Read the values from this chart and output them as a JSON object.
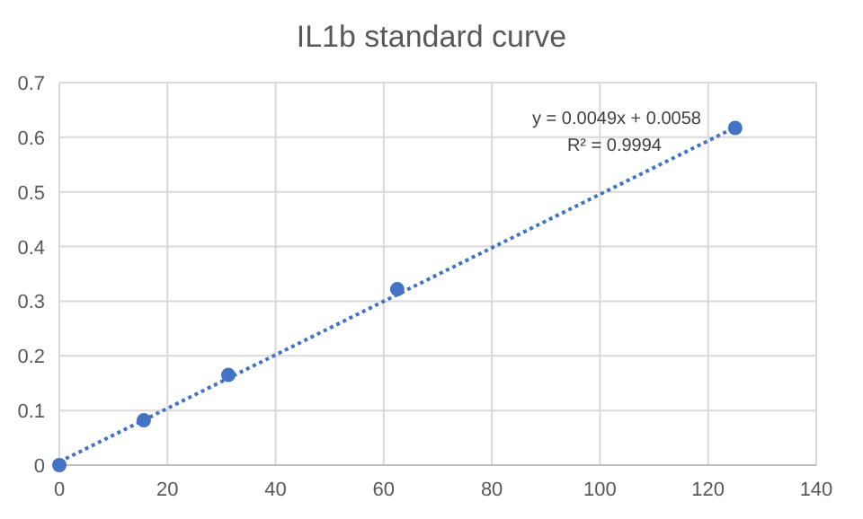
{
  "chart_data": {
    "type": "scatter",
    "title": "IL1b standard curve",
    "marker": "circle",
    "xlim": [
      0,
      140
    ],
    "xticks": [
      0,
      20,
      40,
      60,
      80,
      100,
      120,
      140
    ],
    "ylim": [
      0,
      0.7
    ],
    "yticks": [
      0,
      0.1,
      0.2,
      0.3,
      0.4,
      0.5,
      0.6,
      0.7
    ],
    "grid": true,
    "series": [
      {
        "color": "#4472c4",
        "x": [
          0,
          15.625,
          31.25,
          62.5,
          125
        ],
        "values": [
          0,
          0.082,
          0.165,
          0.322,
          0.617
        ]
      },
      {
        "type": "line",
        "color": "#4472c4",
        "x": [
          0,
          125
        ],
        "values": [
          0.006,
          0.618
        ],
        "line_style": "dotted",
        "marker": "none"
      }
    ],
    "annotations": [
      "y = 0.0049x + 0.0058",
      "R² = 0.9994"
    ]
  }
}
